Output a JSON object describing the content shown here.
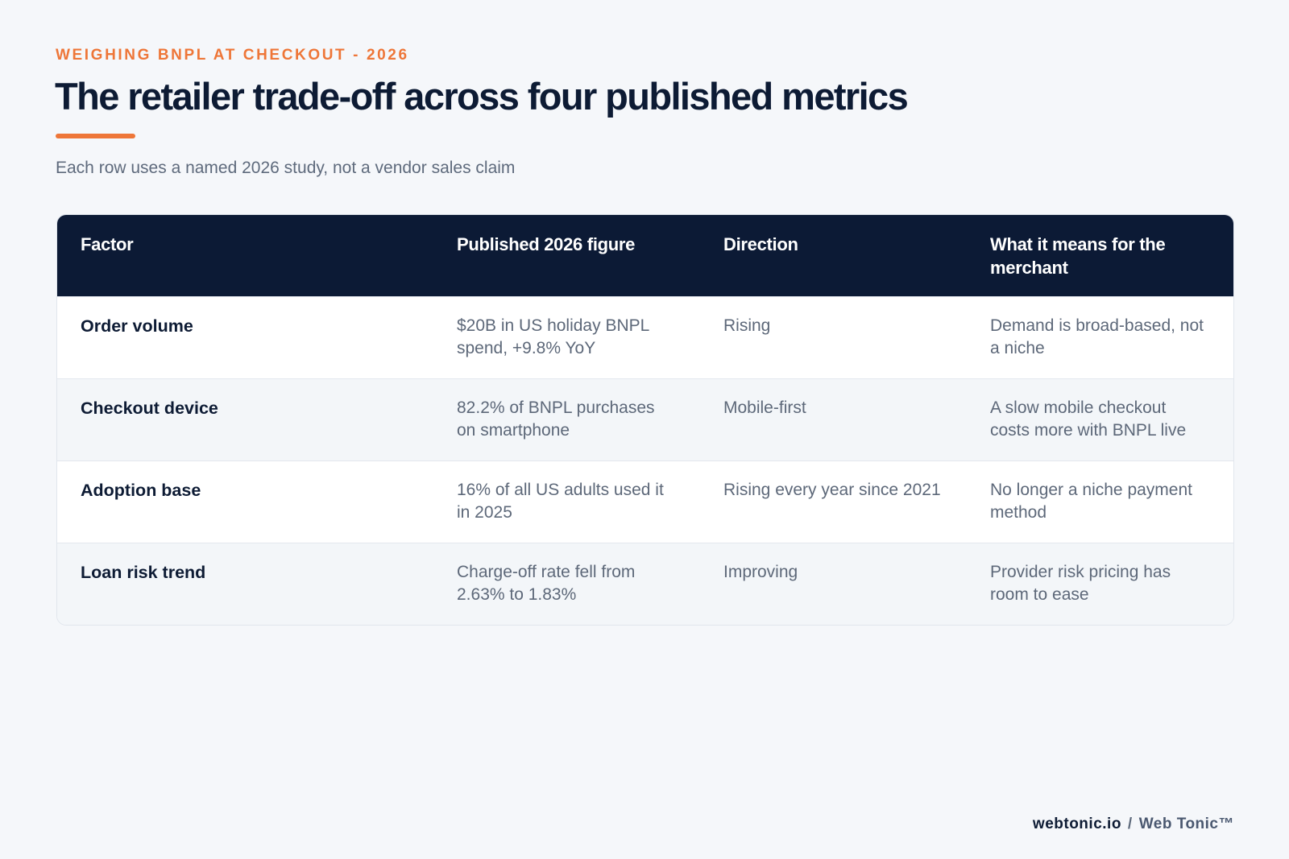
{
  "header": {
    "eyebrow": "WEIGHING BNPL AT CHECKOUT - 2026",
    "title": "The retailer trade-off across four published metrics",
    "subtitle": "Each row uses a named 2026 study, not a vendor sales claim"
  },
  "table": {
    "columns": [
      "Factor",
      "Published 2026 figure",
      "Direction",
      "What it means for the merchant"
    ],
    "rows": [
      {
        "factor": "Order volume",
        "figure": "$20B in US holiday BNPL spend, +9.8% YoY",
        "direction": "Rising",
        "meaning": "Demand is broad-based, not a niche"
      },
      {
        "factor": "Checkout device",
        "figure": "82.2% of BNPL purchases on smartphone",
        "direction": "Mobile-first",
        "meaning": "A slow mobile checkout costs more with BNPL live"
      },
      {
        "factor": "Adoption base",
        "figure": "16% of all US adults used it in 2025",
        "direction": "Rising every year since 2021",
        "meaning": "No longer a niche payment method"
      },
      {
        "factor": "Loan risk trend",
        "figure": "Charge-off rate fell from 2.63% to 1.83%",
        "direction": "Improving",
        "meaning": "Provider risk pricing has room to ease"
      }
    ]
  },
  "footer": {
    "domain": "webtonic.io",
    "separator": "/",
    "brand": "Web Tonic™"
  },
  "colors": {
    "accent": "#ee7638",
    "navy": "#0c1a35",
    "background": "#f5f7fa"
  }
}
